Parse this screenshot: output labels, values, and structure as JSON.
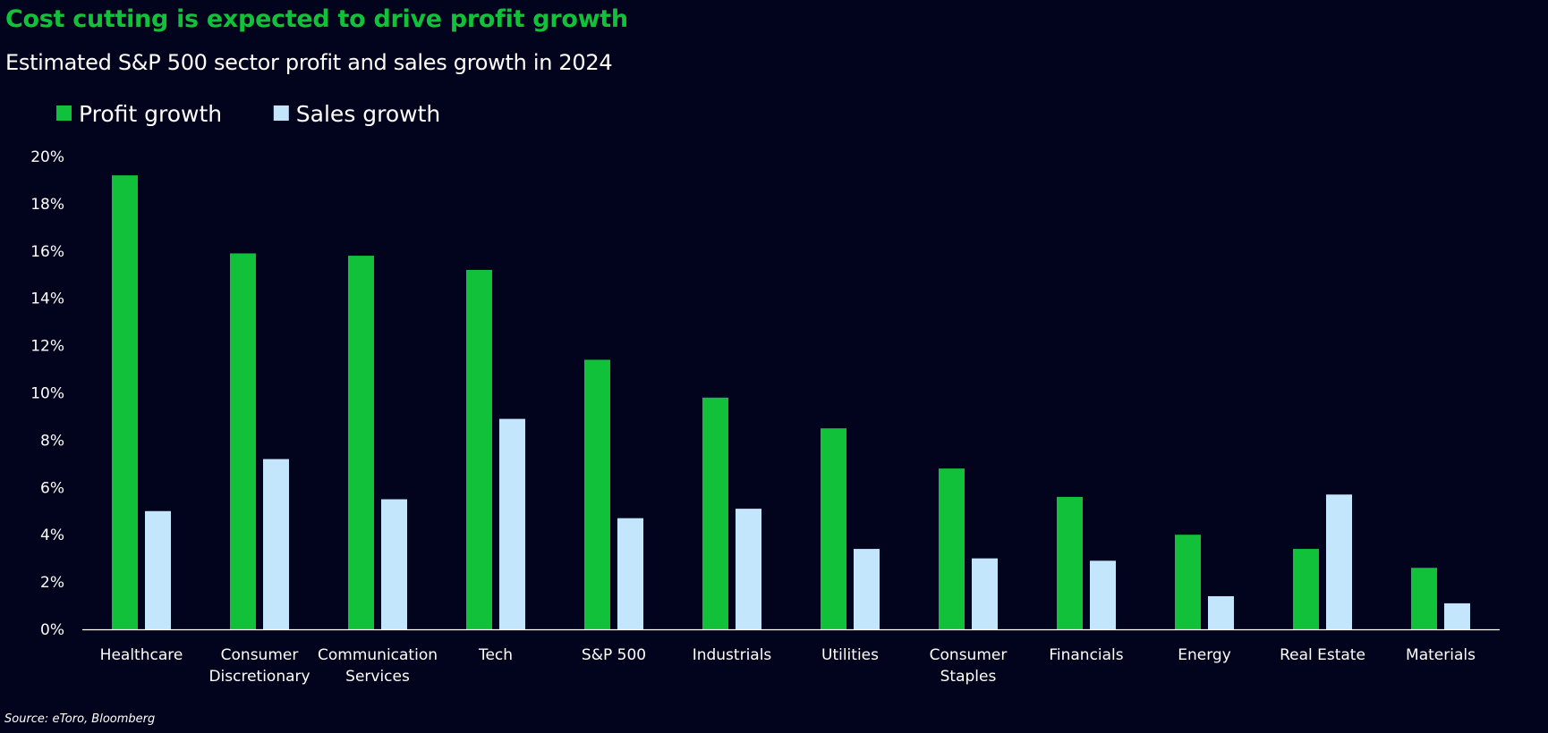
{
  "colors": {
    "background": "#02031c",
    "title": "#12c13a",
    "text": "#ffffff",
    "axis": "#ffffff"
  },
  "chart_data": {
    "type": "bar",
    "title": "Cost cutting is expected to drive profit growth",
    "subtitle": "Estimated S&P 500 sector profit and sales growth in 2024",
    "xlabel": "",
    "ylabel": "",
    "ylim": [
      0,
      20
    ],
    "ytick_step": 2,
    "ytick_suffix": "%",
    "grid": false,
    "legend_position": "top-left",
    "categories": [
      [
        "Healthcare"
      ],
      [
        "Consumer",
        "Discretionary"
      ],
      [
        "Communication",
        "Services"
      ],
      [
        "Tech"
      ],
      [
        "S&P 500"
      ],
      [
        "Industrials"
      ],
      [
        "Utilities"
      ],
      [
        "Consumer",
        "Staples"
      ],
      [
        "Financials"
      ],
      [
        "Energy"
      ],
      [
        "Real Estate"
      ],
      [
        "Materials"
      ]
    ],
    "series": [
      {
        "name": "Profit growth",
        "color": "#12c13a",
        "values": [
          19.2,
          15.9,
          15.8,
          15.2,
          11.4,
          9.8,
          8.5,
          6.8,
          5.6,
          4.0,
          3.4,
          2.6
        ]
      },
      {
        "name": "Sales growth",
        "color": "#c3e6fc",
        "values": [
          5.0,
          7.2,
          5.5,
          8.9,
          4.7,
          5.1,
          3.4,
          3.0,
          2.9,
          1.4,
          5.7,
          1.1
        ]
      }
    ],
    "source": "Source: eToro, Bloomberg"
  }
}
